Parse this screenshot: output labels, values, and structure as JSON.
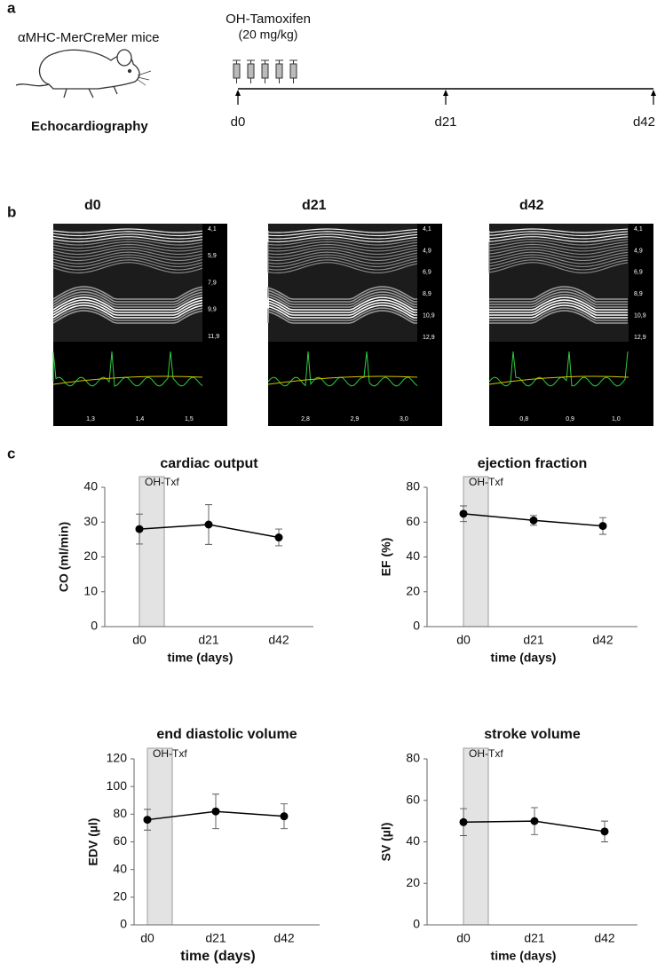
{
  "panel_a": {
    "label": "a",
    "mouse_line": "αMHC-MerCreMer mice",
    "method": "Echocardiography",
    "treatment": "OH-Tamoxifen",
    "dose": "(20 mg/kg)",
    "timepoints": [
      "d0",
      "d21",
      "d42"
    ]
  },
  "panel_b": {
    "label": "b",
    "images": [
      {
        "title": "d0",
        "depth_labels": [
          "4,1",
          "5,9",
          "7,9",
          "9,9",
          "11,9"
        ],
        "time_labels": [
          "1,3",
          "1,4",
          "1,5"
        ]
      },
      {
        "title": "d21",
        "depth_labels": [
          "4,1",
          "4,9",
          "6,9",
          "8,9",
          "10,9",
          "12,9"
        ],
        "time_labels": [
          "2,8",
          "2,9",
          "3,0"
        ]
      },
      {
        "title": "d42",
        "depth_labels": [
          "4,1",
          "4,9",
          "6,9",
          "8,9",
          "10,9",
          "12,9"
        ],
        "time_labels": [
          "0,8",
          "0,9",
          "1,0"
        ]
      }
    ]
  },
  "panel_c": {
    "label": "c"
  },
  "chart_data": [
    {
      "type": "line",
      "title": "cardiac output",
      "ylabel": "CO (ml/min)",
      "xlabel": "time (days)",
      "annotation": "OH-Txf",
      "categories": [
        "d0",
        "d21",
        "d42"
      ],
      "values": [
        28,
        29.3,
        25.6
      ],
      "errors": [
        4.3,
        5.7,
        2.4
      ],
      "ylim": [
        0,
        40
      ],
      "yticks": [
        0,
        10,
        20,
        30,
        40
      ],
      "color": "#000000"
    },
    {
      "type": "line",
      "title": "ejection fraction",
      "ylabel": "EF (%)",
      "xlabel": "time (days)",
      "annotation": "OH-Txf",
      "categories": [
        "d0",
        "d21",
        "d42"
      ],
      "values": [
        64.8,
        61,
        57.8
      ],
      "errors": [
        4.5,
        2.8,
        4.8
      ],
      "ylim": [
        0,
        80
      ],
      "yticks": [
        0,
        20,
        40,
        60,
        80
      ],
      "color": "#000000"
    },
    {
      "type": "line",
      "title": "end diastolic volume",
      "ylabel": "EDV (µl)",
      "xlabel": "time (days)",
      "annotation": "OH-Txf",
      "categories": [
        "d0",
        "d21",
        "d42"
      ],
      "values": [
        76,
        82,
        78.5
      ],
      "errors": [
        7.5,
        12.5,
        9
      ],
      "ylim": [
        0,
        120
      ],
      "yticks": [
        0,
        20,
        40,
        60,
        80,
        100,
        120
      ],
      "color": "#000000"
    },
    {
      "type": "line",
      "title": "stroke volume",
      "ylabel": "SV (µl)",
      "xlabel": "time (days)",
      "annotation": "OH-Txf",
      "categories": [
        "d0",
        "d21",
        "d42"
      ],
      "values": [
        49.5,
        50,
        45
      ],
      "errors": [
        6.5,
        6.5,
        5
      ],
      "ylim": [
        0,
        80
      ],
      "yticks": [
        0,
        20,
        40,
        60,
        80
      ],
      "color": "#000000"
    }
  ]
}
